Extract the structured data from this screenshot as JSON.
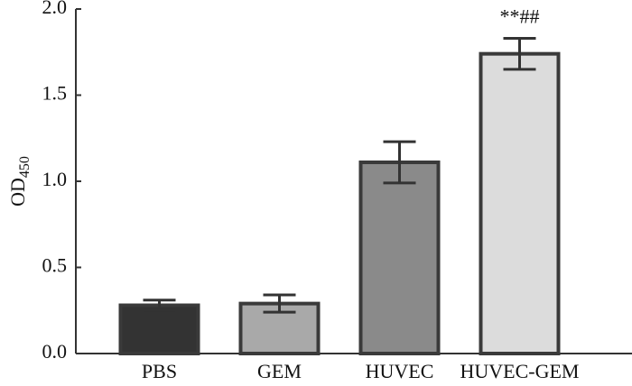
{
  "chart_data": {
    "type": "bar",
    "y_label": "OD",
    "y_label_subscript": "450",
    "categories": [
      "PBS",
      "GEM",
      "HUVEC",
      "HUVEC-GEM"
    ],
    "values": [
      0.28,
      0.29,
      1.11,
      1.74
    ],
    "errors": [
      0.03,
      0.05,
      0.12,
      0.09
    ],
    "colors": [
      "#333333",
      "#a9a9a9",
      "#8a8a8a",
      "#dcdcdc"
    ],
    "edge_color": "#3a3a3a",
    "annotation": "**##",
    "ylim": [
      0,
      2
    ],
    "yticks": [
      {
        "value": 0,
        "label": "0.0"
      },
      0.5,
      {
        "value": 1,
        "label": "1.0"
      },
      1.5,
      {
        "value": 2,
        "label": "2.0"
      }
    ],
    "grid": false
  }
}
